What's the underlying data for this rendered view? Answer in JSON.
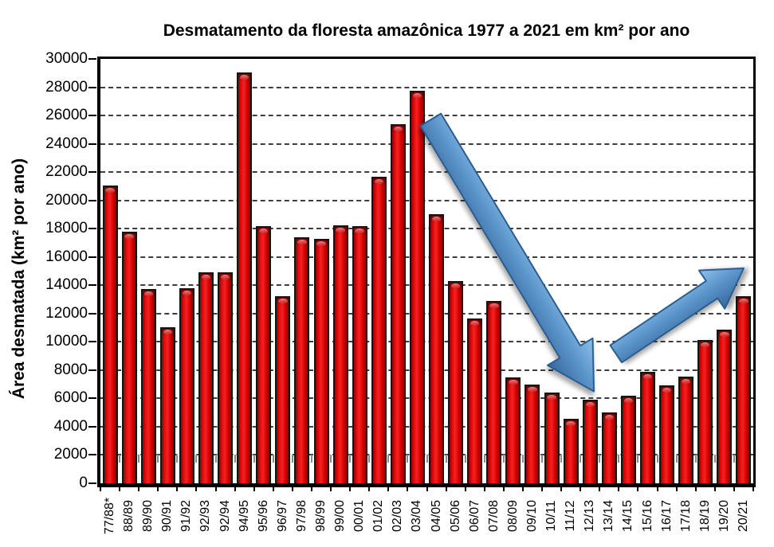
{
  "title": "Desmatamento da floresta amazônica 1977 a 2021 em km² por ano",
  "chart_data": {
    "type": "bar",
    "title": "Desmatamento da floresta amazônica 1977 a 2021 em km² por ano",
    "xlabel": "",
    "ylabel": "Área desmatada (km² por ano)",
    "ylim": [
      0,
      30000
    ],
    "ytick_step": 2000,
    "grid": "horizontal-dashed",
    "legend": "none",
    "bar_color": "#e60f0f",
    "bar_border_color": "#141414",
    "arrow_color_light": "#8fc2ec",
    "arrow_color_dark": "#34689f",
    "categories": [
      "77/88*",
      "88/89",
      "89/90",
      "90/91",
      "91/92",
      "92/93",
      "92/94",
      "94/95",
      "95/96",
      "96/97",
      "97/98",
      "98/99",
      "99/00",
      "00/01",
      "01/02",
      "02/03",
      "03/04",
      "04/05",
      "05/06",
      "06/07",
      "07/08",
      "08/09",
      "09/10",
      "10/11",
      "11/12",
      "12/13",
      "13/14",
      "14/15",
      "15/16",
      "16/17",
      "17/18",
      "18/19",
      "19/20",
      "20/21"
    ],
    "values": [
      21050,
      17770,
      13730,
      11030,
      13786,
      14896,
      14896,
      29059,
      18161,
      13227,
      17383,
      17259,
      18226,
      18165,
      21651,
      25396,
      27772,
      19014,
      14286,
      11651,
      12911,
      7464,
      7000,
      6418,
      4571,
      5891,
      5012,
      6207,
      7893,
      6947,
      7536,
      10129,
      10851,
      13235
    ],
    "annotations": [
      {
        "name": "decrease-trend-arrow",
        "direction": "down",
        "from": {
          "slot": 16.7,
          "value": 25700
        },
        "to": {
          "slot": 25.2,
          "value": 6500
        },
        "shaft_width": 30,
        "head_width": 66,
        "head_length": 58
      },
      {
        "name": "increase-trend-arrow",
        "direction": "up",
        "from": {
          "slot": 26.35,
          "value": 9150
        },
        "to": {
          "slot": 33.0,
          "value": 15200
        },
        "shaft_width": 26,
        "head_width": 58,
        "head_length": 48
      }
    ]
  }
}
